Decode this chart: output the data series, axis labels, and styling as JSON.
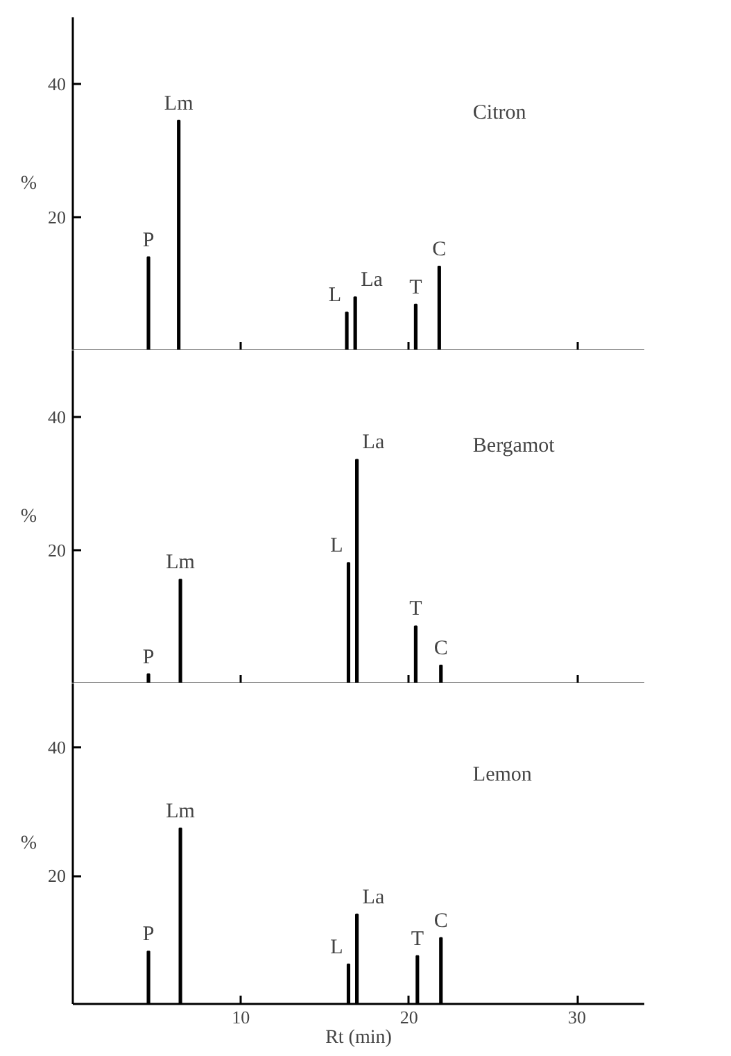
{
  "chart_data": [
    {
      "type": "bar",
      "title": "Citron",
      "ylabel": "%",
      "x": [
        4.5,
        6.3,
        16.3,
        16.8,
        20.4,
        21.8
      ],
      "values": [
        14.0,
        34.5,
        5.7,
        8.0,
        6.9,
        12.6
      ],
      "color": "#000000",
      "xlim": [
        0,
        34
      ],
      "ylim": [
        0,
        50
      ],
      "xticks": [
        10,
        20,
        30
      ],
      "yticks": [
        20,
        40
      ],
      "tick_labels": "y",
      "grid": false,
      "annotations": [
        {
          "text": "P",
          "x": 4.5,
          "y": 14.0
        },
        {
          "text": "Lm",
          "x": 6.3,
          "y": 34.5
        },
        {
          "text": "L",
          "x": 16.3,
          "y": 5.7
        },
        {
          "text": "La",
          "x": 16.8,
          "y": 8.0
        },
        {
          "text": "T",
          "x": 20.4,
          "y": 6.9
        },
        {
          "text": "C",
          "x": 21.8,
          "y": 12.6
        }
      ]
    },
    {
      "type": "bar",
      "title": "Bergamot",
      "ylabel": "%",
      "x": [
        4.5,
        6.4,
        16.4,
        16.9,
        20.4,
        21.9
      ],
      "values": [
        1.4,
        15.6,
        18.1,
        33.6,
        8.6,
        2.7
      ],
      "color": "#000000",
      "xlim": [
        0,
        34
      ],
      "ylim": [
        0,
        50
      ],
      "xticks": [
        10,
        20,
        30
      ],
      "yticks": [
        20,
        40
      ],
      "tick_labels": "y",
      "grid": false,
      "annotations": [
        {
          "text": "P",
          "x": 4.5,
          "y": 1.4
        },
        {
          "text": "Lm",
          "x": 6.4,
          "y": 15.6
        },
        {
          "text": "L",
          "x": 16.4,
          "y": 18.1
        },
        {
          "text": "La",
          "x": 16.9,
          "y": 33.6
        },
        {
          "text": "T",
          "x": 20.4,
          "y": 8.6
        },
        {
          "text": "C",
          "x": 21.9,
          "y": 2.7
        }
      ]
    },
    {
      "type": "bar",
      "title": "Lemon",
      "ylabel": "%",
      "xlabel": "Rt (min)",
      "x": [
        4.5,
        6.4,
        16.4,
        16.9,
        20.5,
        21.9
      ],
      "values": [
        8.2,
        27.4,
        6.2,
        14.0,
        7.5,
        10.3
      ],
      "color": "#000000",
      "xlim": [
        0,
        34
      ],
      "ylim": [
        0,
        50
      ],
      "xticks": [
        10,
        20,
        30
      ],
      "yticks": [
        20,
        40
      ],
      "grid": false,
      "annotations": [
        {
          "text": "P",
          "x": 4.5,
          "y": 8.2
        },
        {
          "text": "Lm",
          "x": 6.4,
          "y": 27.4
        },
        {
          "text": "L",
          "x": 16.4,
          "y": 6.2
        },
        {
          "text": "La",
          "x": 16.9,
          "y": 14.0
        },
        {
          "text": "T",
          "x": 20.5,
          "y": 7.5
        },
        {
          "text": "C",
          "x": 21.9,
          "y": 10.3
        }
      ]
    }
  ]
}
